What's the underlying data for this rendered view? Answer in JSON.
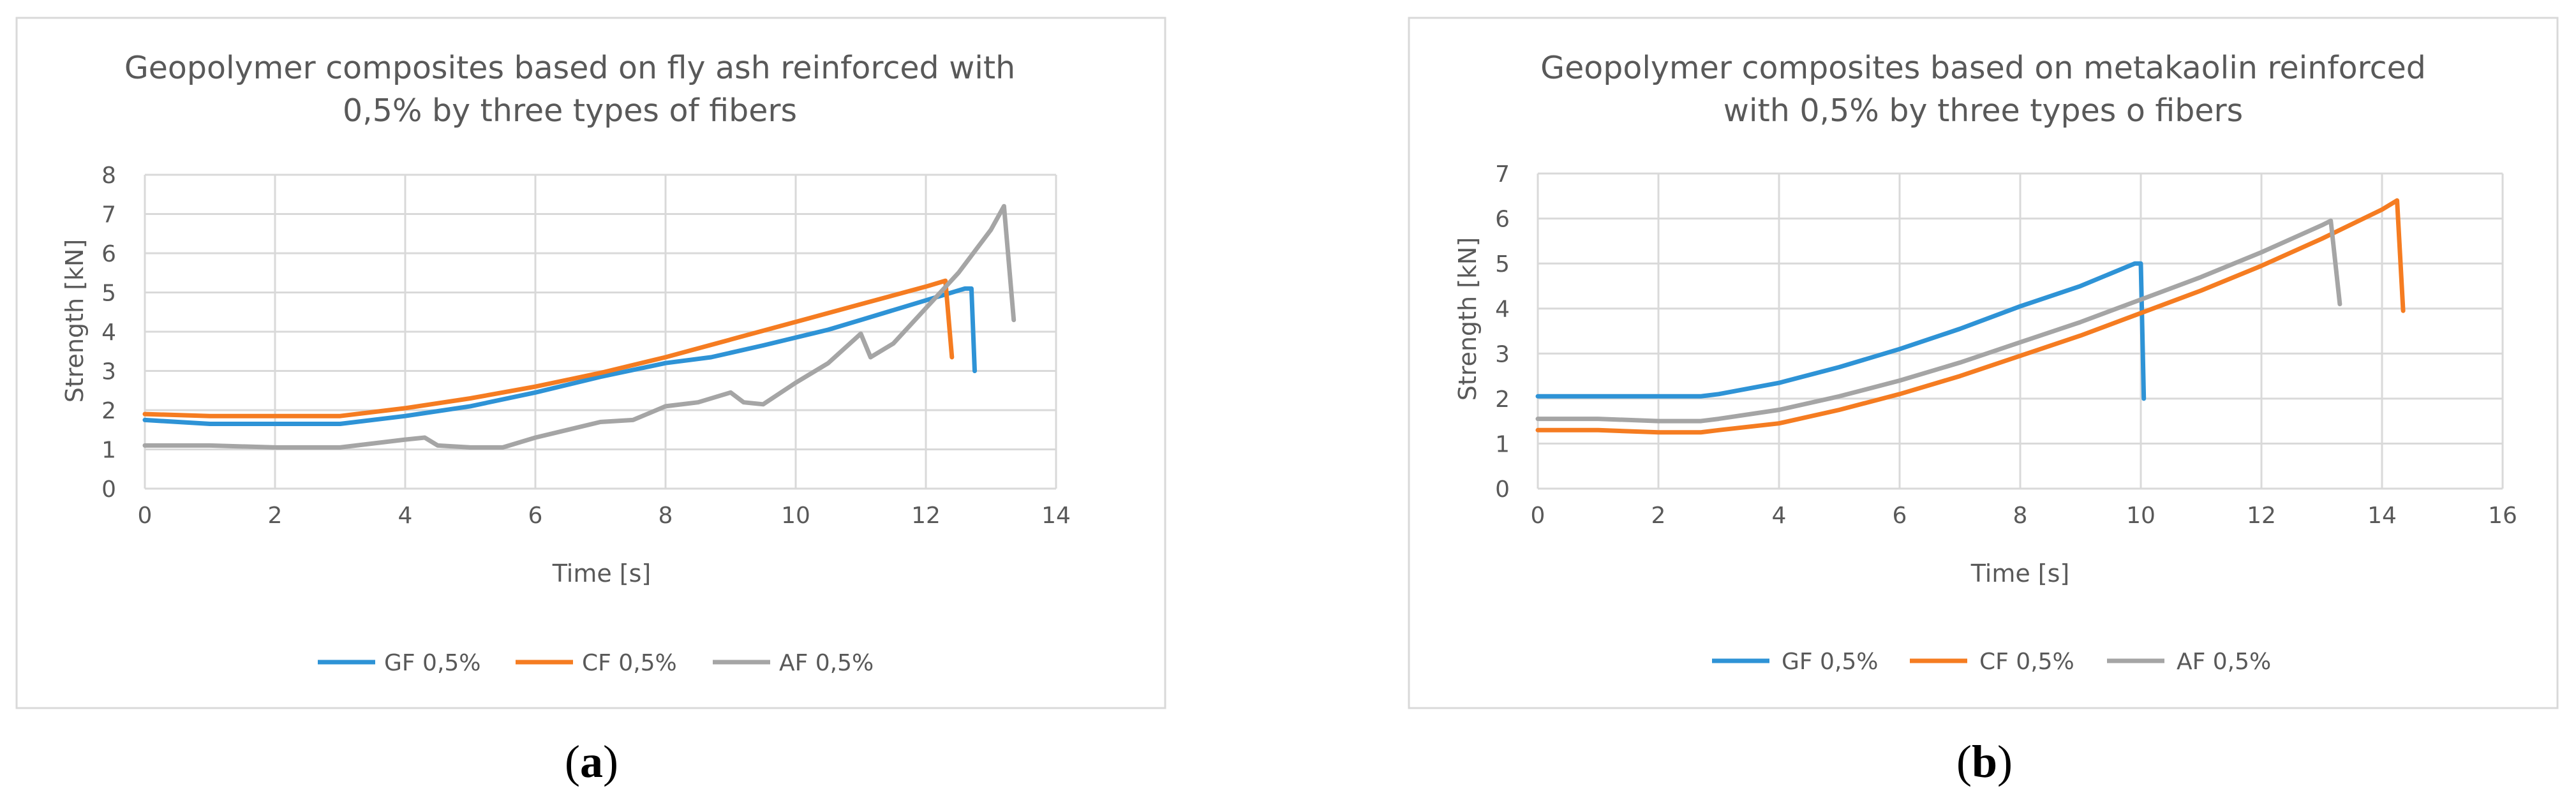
{
  "colors": {
    "gf": "#2e93d6",
    "cf": "#f57c21",
    "af": "#a5a5a5",
    "grid": "#d9d9d9",
    "frame": "#d9d9d9",
    "text": "#595959"
  },
  "chart_data": [
    {
      "type": "line",
      "title_lines": [
        "Geopolymer composites based on fly ash reinforced with",
        "0,5% by three types of fibers"
      ],
      "xlabel": "Time [s]",
      "ylabel": "Strength [kN]",
      "xlim": [
        0,
        14
      ],
      "ylim": [
        0,
        8
      ],
      "x_ticks": [
        "0",
        "2",
        "4",
        "6",
        "8",
        "10",
        "12",
        "14"
      ],
      "y_ticks": [
        "0",
        "1",
        "2",
        "3",
        "4",
        "5",
        "6",
        "7",
        "8"
      ],
      "grid": true,
      "legend": "bottom",
      "caption_open": "(",
      "caption_letter": "a",
      "caption_close": ")",
      "series": [
        {
          "name": "GF 0,5%",
          "color_key": "gf",
          "points": [
            [
              0,
              1.75
            ],
            [
              1,
              1.65
            ],
            [
              2,
              1.65
            ],
            [
              3,
              1.65
            ],
            [
              4,
              1.85
            ],
            [
              5,
              2.1
            ],
            [
              6,
              2.45
            ],
            [
              7,
              2.85
            ],
            [
              8,
              3.2
            ],
            [
              8.7,
              3.35
            ],
            [
              9.5,
              3.65
            ],
            [
              10.5,
              4.05
            ],
            [
              11,
              4.3
            ],
            [
              12,
              4.8
            ],
            [
              12.4,
              5.0
            ],
            [
              12.6,
              5.1
            ],
            [
              12.7,
              5.1
            ],
            [
              12.75,
              3.0
            ]
          ]
        },
        {
          "name": "CF 0,5%",
          "color_key": "cf",
          "points": [
            [
              0,
              1.9
            ],
            [
              1,
              1.85
            ],
            [
              2,
              1.85
            ],
            [
              3,
              1.85
            ],
            [
              4,
              2.05
            ],
            [
              5,
              2.3
            ],
            [
              6,
              2.6
            ],
            [
              7,
              2.95
            ],
            [
              8,
              3.35
            ],
            [
              9,
              3.8
            ],
            [
              10,
              4.25
            ],
            [
              11,
              4.7
            ],
            [
              12,
              5.15
            ],
            [
              12.3,
              5.3
            ],
            [
              12.4,
              3.35
            ]
          ]
        },
        {
          "name": "AF 0,5%",
          "color_key": "af",
          "points": [
            [
              0,
              1.1
            ],
            [
              1,
              1.1
            ],
            [
              2,
              1.05
            ],
            [
              3,
              1.05
            ],
            [
              4,
              1.25
            ],
            [
              4.3,
              1.3
            ],
            [
              4.5,
              1.1
            ],
            [
              5,
              1.05
            ],
            [
              5.5,
              1.05
            ],
            [
              6,
              1.3
            ],
            [
              7,
              1.7
            ],
            [
              7.5,
              1.75
            ],
            [
              8,
              2.1
            ],
            [
              8.5,
              2.2
            ],
            [
              9,
              2.45
            ],
            [
              9.2,
              2.2
            ],
            [
              9.5,
              2.15
            ],
            [
              10,
              2.7
            ],
            [
              10.5,
              3.2
            ],
            [
              11,
              3.95
            ],
            [
              11.15,
              3.35
            ],
            [
              11.5,
              3.7
            ],
            [
              12,
              4.6
            ],
            [
              12.5,
              5.5
            ],
            [
              13,
              6.6
            ],
            [
              13.2,
              7.2
            ],
            [
              13.35,
              4.3
            ]
          ]
        }
      ]
    },
    {
      "type": "line",
      "title_lines": [
        "Geopolymer composites based on metakaolin reinforced",
        "with 0,5% by three types o fibers"
      ],
      "xlabel": "Time [s]",
      "ylabel": "Strength [kN]",
      "xlim": [
        0,
        16
      ],
      "ylim": [
        0,
        7
      ],
      "x_ticks": [
        "0",
        "2",
        "4",
        "6",
        "8",
        "10",
        "12",
        "14",
        "16"
      ],
      "y_ticks": [
        "0",
        "1",
        "2",
        "3",
        "4",
        "5",
        "6",
        "7"
      ],
      "grid": true,
      "legend": "bottom",
      "caption_open": "(",
      "caption_letter": "b",
      "caption_close": ")",
      "series": [
        {
          "name": "GF 0,5%",
          "color_key": "gf",
          "points": [
            [
              0,
              2.05
            ],
            [
              1,
              2.05
            ],
            [
              2,
              2.05
            ],
            [
              2.7,
              2.05
            ],
            [
              3,
              2.1
            ],
            [
              4,
              2.35
            ],
            [
              5,
              2.7
            ],
            [
              6,
              3.1
            ],
            [
              7,
              3.55
            ],
            [
              8,
              4.05
            ],
            [
              9,
              4.5
            ],
            [
              9.9,
              5.0
            ],
            [
              10,
              5.0
            ],
            [
              10.05,
              2.0
            ]
          ]
        },
        {
          "name": "CF 0,5%",
          "color_key": "cf",
          "points": [
            [
              0,
              1.3
            ],
            [
              1,
              1.3
            ],
            [
              2,
              1.25
            ],
            [
              2.7,
              1.25
            ],
            [
              3,
              1.3
            ],
            [
              4,
              1.45
            ],
            [
              5,
              1.75
            ],
            [
              6,
              2.1
            ],
            [
              7,
              2.5
            ],
            [
              8,
              2.95
            ],
            [
              9,
              3.4
            ],
            [
              10,
              3.9
            ],
            [
              11,
              4.4
            ],
            [
              12,
              4.95
            ],
            [
              13,
              5.55
            ],
            [
              14,
              6.2
            ],
            [
              14.25,
              6.4
            ],
            [
              14.35,
              3.95
            ]
          ]
        },
        {
          "name": "AF 0,5%",
          "color_key": "af",
          "points": [
            [
              0,
              1.55
            ],
            [
              1,
              1.55
            ],
            [
              2,
              1.5
            ],
            [
              2.7,
              1.5
            ],
            [
              3,
              1.55
            ],
            [
              4,
              1.75
            ],
            [
              5,
              2.05
            ],
            [
              6,
              2.4
            ],
            [
              7,
              2.8
            ],
            [
              8,
              3.25
            ],
            [
              9,
              3.7
            ],
            [
              10,
              4.2
            ],
            [
              11,
              4.7
            ],
            [
              12,
              5.25
            ],
            [
              13,
              5.85
            ],
            [
              13.15,
              5.95
            ],
            [
              13.3,
              4.1
            ]
          ]
        }
      ]
    }
  ]
}
